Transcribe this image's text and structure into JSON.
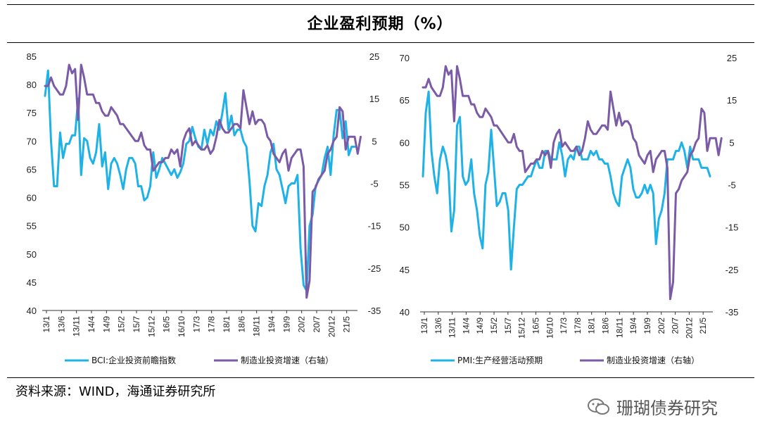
{
  "title": "企业盈利预期（%）",
  "source": "资料来源：WIND，海通证券研究所",
  "watermark": "珊瑚债券研究",
  "colors": {
    "cyan": "#1fb2e6",
    "purple": "#7b5aa6"
  },
  "chart_data": [
    {
      "type": "line",
      "left_axis": {
        "ticks": [
          40,
          45,
          50,
          55,
          60,
          65,
          70,
          75,
          80,
          85
        ],
        "range": [
          40,
          85
        ]
      },
      "right_axis": {
        "ticks": [
          -35,
          -25,
          -15,
          -5,
          5,
          15,
          25
        ],
        "range": [
          -35,
          25
        ]
      },
      "x_ticks": [
        "13/1",
        "13/6",
        "13/11",
        "14/4",
        "14/9",
        "15/2",
        "15/7",
        "15/12",
        "16/5",
        "16/10",
        "17/3",
        "17/8",
        "18/1",
        "18/6",
        "18/11",
        "19/4",
        "19/9",
        "20/2",
        "20/7",
        "20/12",
        "21/5"
      ],
      "series": [
        {
          "name": "BCI:企业投资前瞻指数",
          "axis": "left",
          "color": "#1fb2e6",
          "values": [
            78,
            82.5,
            70,
            62,
            62,
            71.5,
            67,
            69.5,
            69.5,
            71,
            71,
            77.5,
            64,
            70.5,
            70,
            67,
            66,
            68,
            73,
            65.5,
            68,
            61.5,
            66,
            67,
            66,
            64,
            61.5,
            65,
            67,
            67,
            66,
            62,
            62,
            59.5,
            60,
            62,
            68,
            63.5,
            65,
            67,
            66,
            65,
            64,
            65,
            63.5,
            64.5,
            66,
            69.5,
            70,
            72.5,
            70.5,
            69,
            68.5,
            72,
            69.5,
            72,
            71,
            73.5,
            72,
            75,
            78.5,
            72,
            74.5,
            71,
            72,
            72,
            70,
            69,
            63,
            55,
            54,
            59,
            58.5,
            62,
            64,
            68,
            69.5,
            65,
            64,
            61.5,
            59,
            62,
            62.5,
            62.5,
            64,
            51,
            44.5,
            43.5,
            55,
            57,
            62,
            63,
            64,
            67,
            69,
            64,
            71,
            75.5,
            75.5,
            70.5,
            73.5,
            67.5,
            69,
            69
          ]
        },
        {
          "name": "制造业投资增速（右轴）",
          "axis": "right",
          "color": "#7b5aa6",
          "values": [
            18,
            18,
            20,
            18,
            17,
            16,
            16,
            18,
            23,
            21,
            22,
            10,
            23,
            20,
            16,
            16,
            16,
            14,
            14,
            12,
            11,
            11,
            13,
            12,
            11,
            9,
            9,
            8,
            7,
            6,
            5,
            5,
            7,
            4,
            3,
            3,
            -2,
            -1,
            0,
            0,
            1,
            1,
            3,
            2,
            3,
            -1,
            5,
            7,
            8,
            4,
            5,
            4,
            3,
            3,
            4,
            2,
            3,
            6,
            10,
            8,
            7,
            7,
            8,
            9,
            9,
            8,
            17,
            13,
            9,
            12,
            9,
            10,
            10,
            9,
            6,
            5,
            2,
            1,
            0,
            2,
            3,
            -2,
            1,
            2,
            3,
            3,
            -1,
            -32,
            -28,
            -7,
            -6,
            -4,
            -3,
            -2,
            2,
            3,
            5,
            6,
            13,
            12,
            3,
            6,
            6,
            6,
            2,
            6
          ]
        }
      ],
      "legend": [
        "BCI:企业投资前瞻指数",
        "制造业投资增速（右轴）"
      ]
    },
    {
      "type": "line",
      "left_axis": {
        "ticks": [
          40,
          45,
          50,
          55,
          60,
          65,
          70
        ],
        "range": [
          40,
          70
        ]
      },
      "right_axis": {
        "ticks": [
          -35,
          -25,
          -15,
          -5,
          5,
          15,
          25
        ],
        "range": [
          -35,
          25
        ]
      },
      "x_ticks": [
        "13/1",
        "13/6",
        "13/11",
        "14/4",
        "14/9",
        "15/2",
        "15/7",
        "15/12",
        "16/5",
        "16/10",
        "17/3",
        "17/8",
        "18/1",
        "18/6",
        "18/11",
        "19/4",
        "19/9",
        "20/2",
        "20/7",
        "20/12",
        "21/5"
      ],
      "series": [
        {
          "name": "PMI:生产经营活动预期",
          "axis": "left",
          "color": "#1fb2e6",
          "values": [
            56,
            63.5,
            66,
            59,
            56,
            54,
            58,
            59.5,
            58.5,
            56.5,
            49.5,
            52,
            62,
            63,
            56,
            55,
            55.5,
            58,
            54,
            52,
            49,
            47.5,
            55,
            56.5,
            61.5,
            57,
            52.5,
            53,
            54,
            54,
            52,
            45,
            50,
            54.5,
            55,
            55,
            55.5,
            56,
            56,
            57,
            58,
            57,
            57,
            59,
            59,
            58,
            58,
            58,
            60,
            58.5,
            56,
            58,
            58.5,
            58,
            59.5,
            59.5,
            58,
            58,
            58,
            59,
            58.5,
            59,
            58,
            58,
            57.5,
            57.5,
            56,
            54,
            53,
            52.5,
            56,
            57,
            58,
            57,
            54.5,
            53.5,
            53.5,
            54,
            55,
            54,
            55,
            54,
            48,
            51,
            52,
            54,
            58,
            58,
            58,
            59,
            59,
            60,
            59,
            57,
            59.5,
            58,
            58,
            58,
            57,
            57,
            57,
            56
          ]
        },
        {
          "name": "制造业投资增速（右轴）",
          "axis": "right",
          "color": "#7b5aa6",
          "values": [
            18,
            18,
            20,
            18,
            17,
            16,
            16,
            18,
            23,
            21,
            22,
            10,
            23,
            20,
            16,
            16,
            16,
            14,
            14,
            12,
            11,
            11,
            13,
            12,
            11,
            9,
            9,
            8,
            7,
            6,
            5,
            5,
            7,
            4,
            3,
            3,
            -2,
            -1,
            0,
            0,
            1,
            1,
            3,
            2,
            3,
            -1,
            5,
            7,
            8,
            4,
            5,
            4,
            3,
            3,
            4,
            2,
            3,
            6,
            10,
            8,
            7,
            7,
            8,
            9,
            9,
            8,
            17,
            13,
            9,
            12,
            9,
            10,
            10,
            9,
            6,
            5,
            2,
            1,
            0,
            2,
            3,
            -2,
            1,
            2,
            3,
            3,
            -1,
            -32,
            -28,
            -7,
            -6,
            -4,
            -3,
            -2,
            2,
            3,
            5,
            6,
            13,
            12,
            3,
            6,
            6,
            6,
            2,
            6
          ]
        }
      ],
      "legend": [
        "PMI:生产经营活动预期",
        "制造业投资增速（右轴）"
      ]
    }
  ]
}
